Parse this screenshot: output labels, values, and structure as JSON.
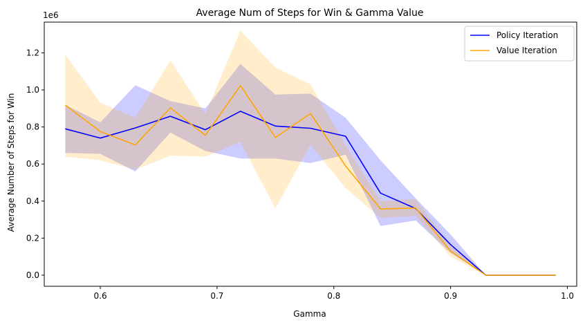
{
  "chart_data": {
    "type": "line",
    "title": "Average Num of Steps for Win & Gamma Value",
    "xlabel": "Gamma",
    "ylabel": "Average Number of Steps for Win",
    "y_offset_label": "1e6",
    "xlim": [
      0.552,
      1.008
    ],
    "ylim": [
      -60000,
      1366000
    ],
    "xticks": [
      0.6,
      0.7,
      0.8,
      0.9,
      1.0
    ],
    "xtick_labels": [
      "0.6",
      "0.7",
      "0.8",
      "0.9",
      "1.0"
    ],
    "yticks": [
      0,
      200000,
      400000,
      600000,
      800000,
      1000000,
      1200000
    ],
    "ytick_labels": [
      "0.0",
      "0.2",
      "0.4",
      "0.6",
      "0.8",
      "1.0",
      "1.2"
    ],
    "legend_position": "top-right",
    "x": [
      0.57,
      0.6,
      0.63,
      0.66,
      0.69,
      0.72,
      0.75,
      0.78,
      0.81,
      0.84,
      0.87,
      0.9,
      0.93,
      0.96,
      0.99
    ],
    "series": [
      {
        "name": "Policy Iteration",
        "color": "#0000ff",
        "band_color": "#0000ff",
        "values": [
          790000,
          740000,
          795000,
          858000,
          785000,
          885000,
          805000,
          793000,
          750000,
          443000,
          360000,
          165000,
          0,
          0,
          0
        ],
        "upper": [
          920000,
          825000,
          1025000,
          940000,
          900000,
          1140000,
          975000,
          980000,
          850000,
          620000,
          415000,
          220000,
          0,
          0,
          0
        ],
        "lower": [
          660000,
          655000,
          560000,
          770000,
          670000,
          630000,
          630000,
          605000,
          650000,
          265000,
          295000,
          120000,
          0,
          0,
          0
        ]
      },
      {
        "name": "Value Iteration",
        "color": "#ffa500",
        "band_color": "#ffa500",
        "values": [
          918000,
          775000,
          703000,
          903000,
          755000,
          1023000,
          743000,
          873000,
          590000,
          357000,
          363000,
          130000,
          0,
          0,
          0
        ],
        "upper": [
          1190000,
          930000,
          850000,
          1160000,
          870000,
          1320000,
          1120000,
          1030000,
          700000,
          400000,
          410000,
          160000,
          0,
          0,
          0
        ],
        "lower": [
          640000,
          620000,
          570000,
          645000,
          640000,
          720000,
          360000,
          705000,
          470000,
          310000,
          320000,
          100000,
          0,
          0,
          0
        ]
      }
    ]
  }
}
